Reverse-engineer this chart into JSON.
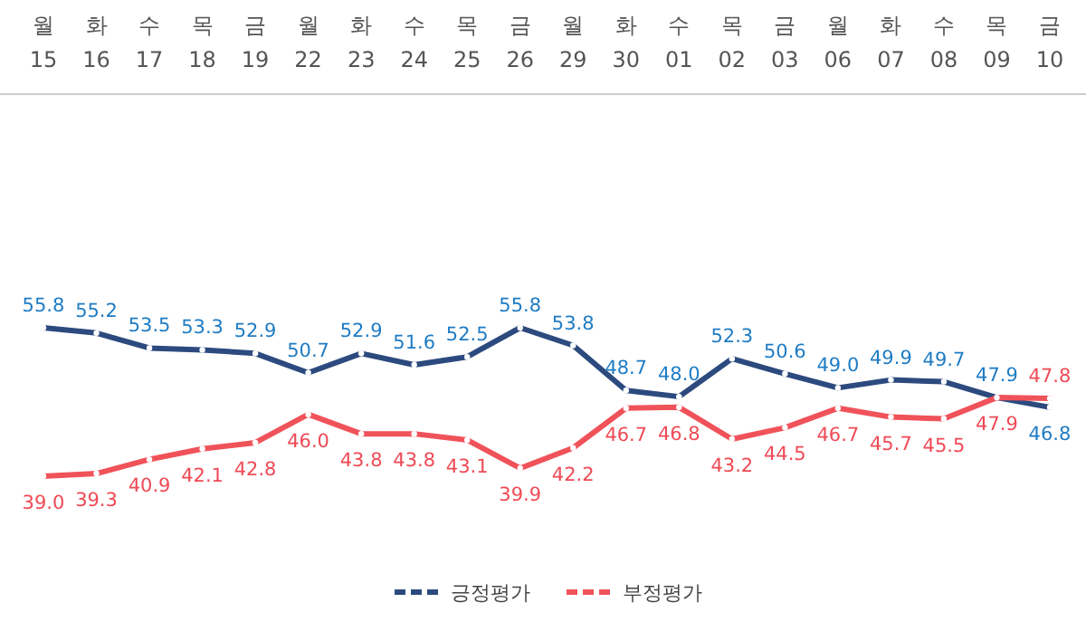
{
  "chart_data": {
    "type": "line",
    "marker": "circle",
    "line_style": "solid",
    "legend": "bottom",
    "categories": [
      "월\n15",
      "화\n16",
      "수\n17",
      "목\n18",
      "금\n19",
      "월\n22",
      "화\n23",
      "수\n24",
      "목\n25",
      "금\n26",
      "월\n29",
      "화\n30",
      "수\n01",
      "목\n02",
      "금\n03",
      "월\n06",
      "화\n07",
      "수\n08",
      "목\n09",
      "금\n10"
    ],
    "series": [
      {
        "name": "긍정평가",
        "color": "#2c4a7e",
        "values": [
          55.8,
          55.2,
          53.5,
          53.3,
          52.9,
          50.7,
          52.9,
          51.6,
          52.5,
          55.8,
          53.8,
          48.7,
          48.0,
          52.3,
          50.6,
          49.0,
          49.9,
          49.7,
          47.9,
          46.8
        ],
        "value_labels": [
          "55.8",
          "55.2",
          "53.5",
          "53.3",
          "52.9",
          "50.7",
          "52.9",
          "51.6",
          "52.5",
          "55.8",
          "53.8",
          "48.7",
          "48.0",
          "52.3",
          "50.6",
          "49.0",
          "49.9",
          "49.7",
          "47.9",
          "46.8"
        ]
      },
      {
        "name": "부정평가",
        "color": "#f0525a",
        "values": [
          39.0,
          39.3,
          40.9,
          42.1,
          42.8,
          46.0,
          43.8,
          43.8,
          43.1,
          39.9,
          42.2,
          46.7,
          46.8,
          43.2,
          44.5,
          46.7,
          45.7,
          45.5,
          47.9,
          47.8
        ],
        "value_labels": [
          "39.0",
          "39.3",
          "40.9",
          "42.1",
          "42.8",
          "46.0",
          "43.8",
          "43.8",
          "43.1",
          "39.9",
          "42.2",
          "46.7",
          "46.8",
          "43.2",
          "44.5",
          "46.7",
          "45.7",
          "45.5",
          "47.9",
          "47.8"
        ]
      }
    ]
  }
}
